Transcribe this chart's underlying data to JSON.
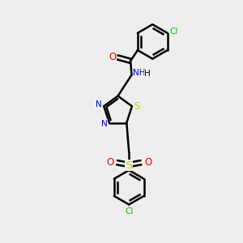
{
  "bg_color": "#eeeeee",
  "bond_color": "#000000",
  "N_color": "#0000ff",
  "O_color": "#ff0000",
  "S_color": "#cccc00",
  "Cl_color": "#00bb00",
  "line_width": 1.8,
  "font_size": 7.5,
  "canvas_xlim": [
    0,
    10
  ],
  "canvas_ylim": [
    0,
    10
  ]
}
